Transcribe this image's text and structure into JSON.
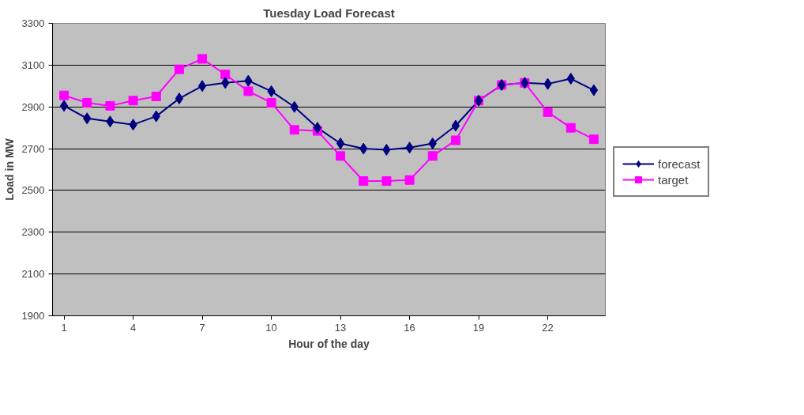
{
  "chart_data": {
    "type": "line",
    "title": "Tuesday Load Forecast",
    "xlabel": "Hour of the day",
    "ylabel": "Load in MW",
    "x": [
      1,
      2,
      3,
      4,
      5,
      6,
      7,
      8,
      9,
      10,
      11,
      12,
      13,
      14,
      15,
      16,
      17,
      18,
      19,
      20,
      21,
      22,
      23,
      24
    ],
    "series": [
      {
        "name": "forecast",
        "color": "#000080",
        "marker": "diamond",
        "values": [
          2905,
          2845,
          2830,
          2815,
          2855,
          2940,
          3000,
          3015,
          3025,
          2975,
          2900,
          2800,
          2725,
          2700,
          2695,
          2705,
          2725,
          2810,
          2930,
          3005,
          3015,
          3010,
          3035,
          2980
        ]
      },
      {
        "name": "target",
        "color": "#ff00ff",
        "marker": "square",
        "values": [
          2955,
          2920,
          2905,
          2930,
          2950,
          3080,
          3130,
          3055,
          2975,
          2920,
          2790,
          2785,
          2665,
          2545,
          2545,
          2550,
          2665,
          2740,
          2930,
          3005,
          3015,
          2875,
          2800,
          2745
        ]
      }
    ],
    "xlim": [
      0.5,
      24.5
    ],
    "xticks": [
      1,
      4,
      7,
      10,
      13,
      16,
      19,
      22
    ],
    "ylim": [
      1900,
      3300
    ],
    "yticks": [
      1900,
      2100,
      2300,
      2500,
      2700,
      2900,
      3100,
      3300
    ],
    "grid": "y",
    "legend": "right"
  }
}
